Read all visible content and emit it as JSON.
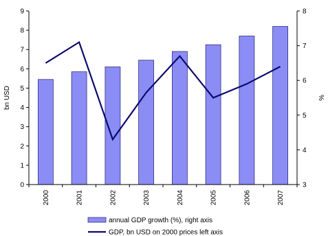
{
  "chart_data": {
    "type": "bar",
    "categories": [
      "2000",
      "2001",
      "2002",
      "2003",
      "2004",
      "2005",
      "2006",
      "2007"
    ],
    "left_axis": {
      "label": "bn USD",
      "range": [
        0,
        9
      ],
      "ticks": [
        "0",
        "1",
        "2",
        "3",
        "4",
        "5",
        "6",
        "7",
        "8",
        "9"
      ]
    },
    "right_axis": {
      "label": "%",
      "range": [
        3,
        8
      ],
      "ticks": [
        "3",
        "4",
        "5",
        "6",
        "7",
        "8"
      ]
    },
    "series": [
      {
        "name": "annual GDP growth (%), right axis",
        "kind": "bar",
        "axis": "left",
        "color": "#8c8cf5",
        "edge_color": "#303080",
        "values": [
          5.45,
          5.85,
          6.1,
          6.45,
          6.9,
          7.25,
          7.7,
          8.2
        ]
      },
      {
        "name": "GDP, bn USD on 2000 prices left axis",
        "kind": "line",
        "axis": "right",
        "color": "#0a0a6e",
        "values": [
          6.5,
          7.1,
          4.3,
          5.65,
          6.7,
          5.5,
          5.9,
          6.4
        ]
      }
    ],
    "grid": false,
    "legend_position": "bottom-center"
  }
}
